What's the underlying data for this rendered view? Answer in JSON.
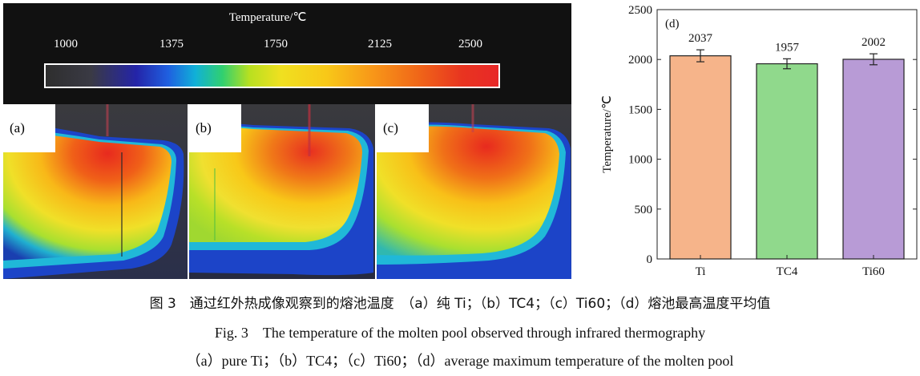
{
  "colorbar": {
    "title": "Temperature/℃",
    "ticks": [
      "1000",
      "1375",
      "1750",
      "2125",
      "2500"
    ]
  },
  "panels": [
    {
      "label": "(a)"
    },
    {
      "label": "(b)"
    },
    {
      "label": "(c)"
    }
  ],
  "chart_data": {
    "type": "bar",
    "panel_label": "(d)",
    "categories": [
      "Ti",
      "TC4",
      "Ti60"
    ],
    "values": [
      2037,
      1957,
      2002
    ],
    "errors": [
      60,
      50,
      55
    ],
    "data_labels": [
      "2037",
      "1957",
      "2002"
    ],
    "colors": [
      "#f6b48a",
      "#90d98c",
      "#b89bd6"
    ],
    "ylabel": "Temperature/℃",
    "ylim": [
      0,
      2500
    ],
    "yticks": [
      "0",
      "500",
      "1000",
      "1500",
      "2000",
      "2500"
    ],
    "ytick_values": [
      0,
      500,
      1000,
      1500,
      2000,
      2500
    ],
    "grid": false
  },
  "captions": {
    "cn": "图 3　通过红外热成像观察到的熔池温度　（a）纯 Ti；（b）TC4；（c）Ti60；（d）熔池最高温度平均值",
    "en_title": "Fig. 3　The temperature of the molten pool observed through infrared thermography",
    "en_sub": "（a）pure Ti；（b）TC4；（c）Ti60；（d）average maximum temperature of the molten pool"
  }
}
